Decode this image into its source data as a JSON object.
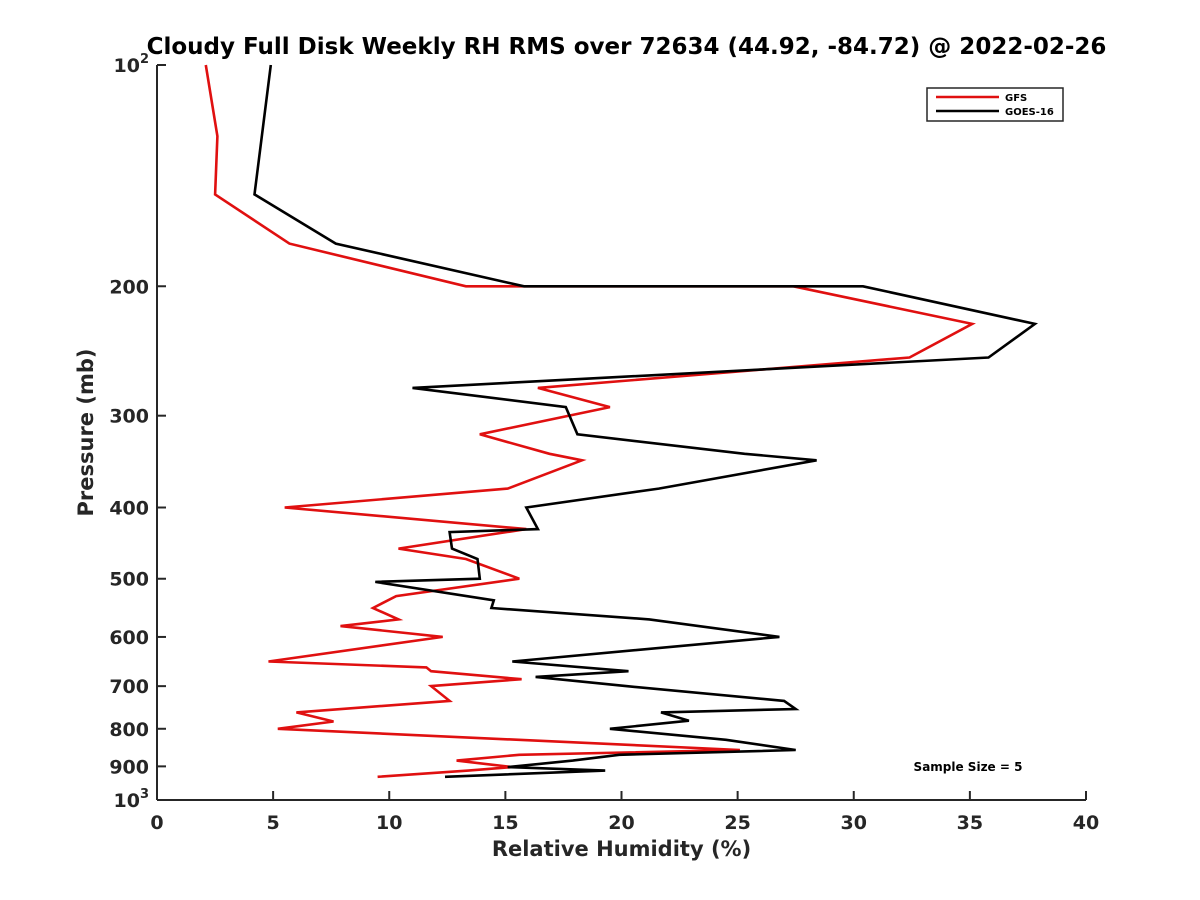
{
  "chart_data": {
    "type": "line",
    "title": "Cloudy Full Disk Weekly RH RMS over 72634 (44.92, -84.72) @ 2022-02-26",
    "xlabel": "Relative Humidity (%)",
    "ylabel": "Pressure (mb)",
    "xlim": [
      0,
      40
    ],
    "ylim": [
      100,
      1000
    ],
    "yscale": "log",
    "y_reversed": true,
    "grid": false,
    "legend_position": "top-right",
    "x_ticks": [
      0,
      5,
      10,
      15,
      20,
      25,
      30,
      35,
      40
    ],
    "x_tick_labels": [
      "0",
      "5",
      "10",
      "15",
      "20",
      "25",
      "30",
      "35",
      "40"
    ],
    "y_ticks": [
      100,
      200,
      300,
      400,
      500,
      600,
      700,
      800,
      900,
      1000
    ],
    "y_tick_labels": [
      {
        "base": "10",
        "exp": "2"
      },
      {
        "base": "200",
        "exp": ""
      },
      {
        "base": "300",
        "exp": ""
      },
      {
        "base": "400",
        "exp": ""
      },
      {
        "base": "500",
        "exp": ""
      },
      {
        "base": "600",
        "exp": ""
      },
      {
        "base": "700",
        "exp": ""
      },
      {
        "base": "800",
        "exp": ""
      },
      {
        "base": "900",
        "exp": ""
      },
      {
        "base": "10",
        "exp": "3"
      }
    ],
    "annotation": "Sample Size = 5",
    "series": [
      {
        "name": "GFS",
        "color": "#e01010",
        "points": [
          [
            2.1,
            100
          ],
          [
            2.6,
            125
          ],
          [
            2.5,
            150
          ],
          [
            5.7,
            175
          ],
          [
            13.3,
            200
          ],
          [
            27.4,
            200
          ],
          [
            35.1,
            225
          ],
          [
            32.4,
            250
          ],
          [
            16.4,
            275
          ],
          [
            19.5,
            292
          ],
          [
            13.9,
            318
          ],
          [
            16.9,
            338
          ],
          [
            18.3,
            345
          ],
          [
            15.1,
            377
          ],
          [
            5.5,
            400
          ],
          [
            15.9,
            428
          ],
          [
            10.4,
            455
          ],
          [
            13.3,
            470
          ],
          [
            15.6,
            500
          ],
          [
            10.3,
            528
          ],
          [
            9.3,
            548
          ],
          [
            10.4,
            568
          ],
          [
            7.9,
            580
          ],
          [
            12.3,
            600
          ],
          [
            4.8,
            648
          ],
          [
            11.6,
            660
          ],
          [
            11.8,
            668
          ],
          [
            15.7,
            685
          ],
          [
            11.8,
            700
          ],
          [
            12.6,
            733
          ],
          [
            6.0,
            760
          ],
          [
            7.6,
            782
          ],
          [
            5.2,
            800
          ],
          [
            25.1,
            855
          ],
          [
            15.6,
            868
          ],
          [
            12.9,
            884
          ],
          [
            15.3,
            902
          ],
          [
            13.4,
            912
          ],
          [
            9.5,
            930
          ]
        ]
      },
      {
        "name": "GOES-16",
        "color": "#000000",
        "points": [
          [
            4.9,
            100
          ],
          [
            4.2,
            150
          ],
          [
            7.7,
            175
          ],
          [
            15.8,
            200
          ],
          [
            30.4,
            200
          ],
          [
            37.8,
            225
          ],
          [
            35.8,
            250
          ],
          [
            11.0,
            275
          ],
          [
            17.6,
            292
          ],
          [
            18.1,
            318
          ],
          [
            25.3,
            338
          ],
          [
            28.4,
            345
          ],
          [
            21.6,
            377
          ],
          [
            15.9,
            400
          ],
          [
            16.4,
            428
          ],
          [
            12.6,
            432
          ],
          [
            12.7,
            455
          ],
          [
            13.8,
            470
          ],
          [
            13.9,
            500
          ],
          [
            9.4,
            505
          ],
          [
            14.5,
            535
          ],
          [
            14.4,
            548
          ],
          [
            21.2,
            568
          ],
          [
            26.8,
            600
          ],
          [
            15.3,
            648
          ],
          [
            20.3,
            668
          ],
          [
            16.3,
            680
          ],
          [
            20.2,
            700
          ],
          [
            27.0,
            733
          ],
          [
            27.5,
            752
          ],
          [
            21.7,
            760
          ],
          [
            22.9,
            780
          ],
          [
            19.5,
            800
          ],
          [
            24.5,
            828
          ],
          [
            27.5,
            855
          ],
          [
            19.9,
            868
          ],
          [
            17.9,
            884
          ],
          [
            15.1,
            902
          ],
          [
            19.3,
            912
          ],
          [
            12.4,
            930
          ]
        ]
      }
    ]
  }
}
